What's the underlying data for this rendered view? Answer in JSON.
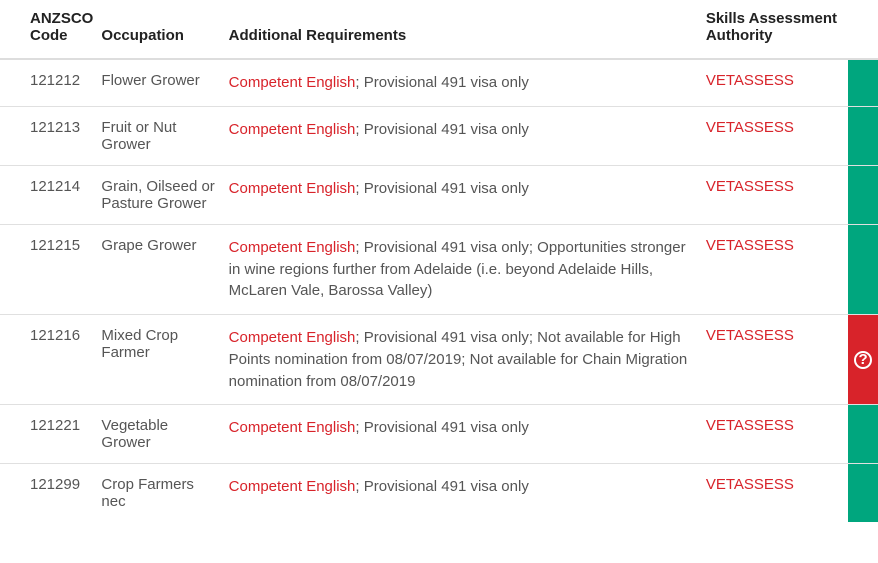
{
  "table": {
    "headers": {
      "code": "ANZSCO Code",
      "occupation": "Occupation",
      "requirements": "Additional Requirements",
      "authority": "Skills Assessment Authority"
    },
    "link_text": "Competent English",
    "rows": [
      {
        "code": "121212",
        "occupation": "Flower Grower",
        "req_suffix": "; Provisional 491 visa only",
        "authority": "VETASSESS",
        "status": "green"
      },
      {
        "code": "121213",
        "occupation": "Fruit or Nut Grower",
        "req_suffix": "; Provisional 491 visa only",
        "authority": "VETASSESS",
        "status": "green"
      },
      {
        "code": "121214",
        "occupation": "Grain, Oilseed or Pasture Grower",
        "req_suffix": "; Provisional 491 visa only",
        "authority": "VETASSESS",
        "status": "green"
      },
      {
        "code": "121215",
        "occupation": "Grape Grower",
        "req_suffix": "; Provisional 491 visa only; Opportunities stronger in wine regions further from Adelaide (i.e. beyond Adelaide Hills, McLaren Vale, Barossa Valley)",
        "authority": "VETASSESS",
        "status": "green"
      },
      {
        "code": "121216",
        "occupation": "Mixed Crop Farmer",
        "req_suffix": "; Provisional 491 visa only; Not available for High Points nomination from 08/07/2019; Not available for Chain Migration nomination from 08/07/2019",
        "authority": "VETASSESS",
        "status": "red"
      },
      {
        "code": "121221",
        "occupation": "Vegetable Grower",
        "req_suffix": "; Provisional 491 visa only",
        "authority": "VETASSESS",
        "status": "green"
      },
      {
        "code": "121299",
        "occupation": "Crop Farmers nec",
        "req_suffix": "; Provisional 491 visa only",
        "authority": "VETASSESS",
        "status": "green"
      }
    ]
  },
  "colors": {
    "link_red": "#d8232a",
    "status_green": "#00a67e",
    "status_red": "#d8232a",
    "border": "#e0e0e0"
  }
}
